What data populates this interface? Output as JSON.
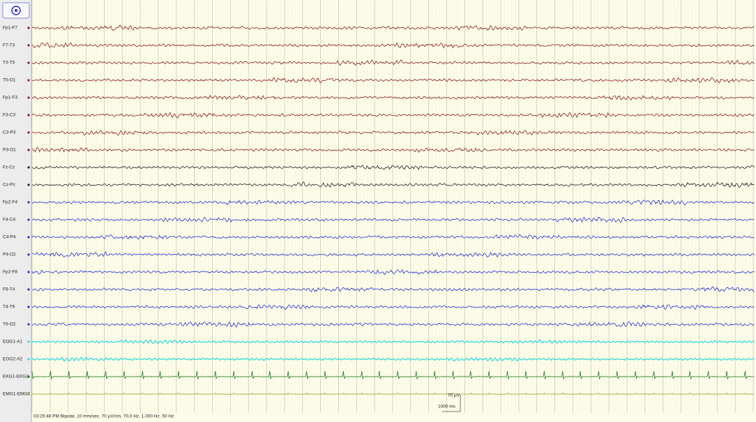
{
  "channels": [
    {
      "label": "Fp1-F7",
      "color": "#8b1c1c"
    },
    {
      "label": "F7-T3",
      "color": "#8b1c1c"
    },
    {
      "label": "T3-T5",
      "color": "#8b1c1c"
    },
    {
      "label": "T5-O1",
      "color": "#8b1c1c"
    },
    {
      "label": "Fp1-F3",
      "color": "#8b1c1c"
    },
    {
      "label": "F3-C3",
      "color": "#8b1c1c"
    },
    {
      "label": "C3-P3",
      "color": "#8b1c1c"
    },
    {
      "label": "P3-O1",
      "color": "#8b1c1c"
    },
    {
      "label": "Fz-Cz",
      "color": "#222222"
    },
    {
      "label": "Cz-Pz",
      "color": "#222222"
    },
    {
      "label": "Fp2-F4",
      "color": "#2a2fd0"
    },
    {
      "label": "F4-C4",
      "color": "#2a2fd0"
    },
    {
      "label": "C4-P4",
      "color": "#2a2fd0"
    },
    {
      "label": "P4-O2",
      "color": "#2a2fd0"
    },
    {
      "label": "Fp2-F8",
      "color": "#2a2fd0"
    },
    {
      "label": "F8-T4",
      "color": "#2a2fd0"
    },
    {
      "label": "T4-T6",
      "color": "#2a2fd0"
    },
    {
      "label": "T6-O2",
      "color": "#2a2fd0"
    },
    {
      "label": "EOG1-A1",
      "color": "#33dada"
    },
    {
      "label": "EOG2-A2",
      "color": "#33dada"
    },
    {
      "label": "EKG1-EKG2",
      "color": "#1f7a1f"
    },
    {
      "label": "EMG1-EMG2",
      "color": "#9c9c2e"
    }
  ],
  "status": "03:29:48 PM Bipolar, 10 mm/sec, 70 µV/cm, 70.0 Hz, 1.000 Hz, 50 Hz",
  "scale": {
    "amplitude": "70 µV",
    "time": "1000 ms"
  }
}
